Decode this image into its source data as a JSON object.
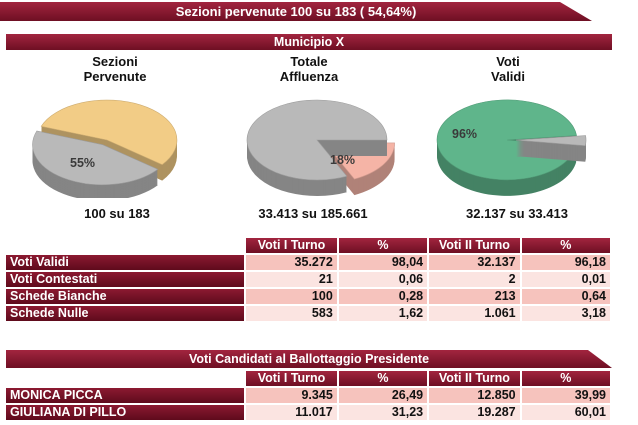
{
  "header": {
    "title": "Sezioni pervenute 100 su 183 ( 54,64%)"
  },
  "municipio": {
    "title": "Municipio X"
  },
  "charts": [
    {
      "title": "Sezioni\nPervenute",
      "percent_label": "55%",
      "caption": "100 su 183",
      "fraction": 0.55,
      "color": "#f2cc86",
      "rest_color": "#b9b9b9"
    },
    {
      "title": "Totale\nAffluenza",
      "percent_label": "18%",
      "caption": "33.413 su 185.661",
      "fraction": 0.18,
      "color": "#f5b4a6",
      "rest_color": "#b9b9b9"
    },
    {
      "title": "Voti\nValidi",
      "percent_label": "96%",
      "caption": "32.137 su 33.413",
      "fraction": 0.96,
      "color": "#5fb58b",
      "rest_color": "#b9b9b9"
    }
  ],
  "results": {
    "headers": [
      "Voti I Turno",
      "%",
      "Voti II Turno",
      "%"
    ],
    "rows": [
      {
        "label": "Voti Validi",
        "v1": "35.272",
        "p1": "98,04",
        "v2": "32.137",
        "p2": "96,18"
      },
      {
        "label": "Voti Contestati",
        "v1": "21",
        "p1": "0,06",
        "v2": "2",
        "p2": "0,01"
      },
      {
        "label": "Schede Bianche",
        "v1": "100",
        "p1": "0,28",
        "v2": "213",
        "p2": "0,64"
      },
      {
        "label": "Schede Nulle",
        "v1": "583",
        "p1": "1,62",
        "v2": "1.061",
        "p2": "3,18"
      }
    ]
  },
  "candidates": {
    "title": "Voti Candidati al Ballottaggio Presidente",
    "headers": [
      "Voti I Turno",
      "%",
      "Voti II Turno",
      "%"
    ],
    "rows": [
      {
        "label": "MONICA PICCA",
        "v1": "9.345",
        "p1": "26,49",
        "v2": "12.850",
        "p2": "39,99"
      },
      {
        "label": "GIULIANA DI PILLO",
        "v1": "11.017",
        "p1": "31,23",
        "v2": "19.287",
        "p2": "60,01"
      }
    ]
  }
}
